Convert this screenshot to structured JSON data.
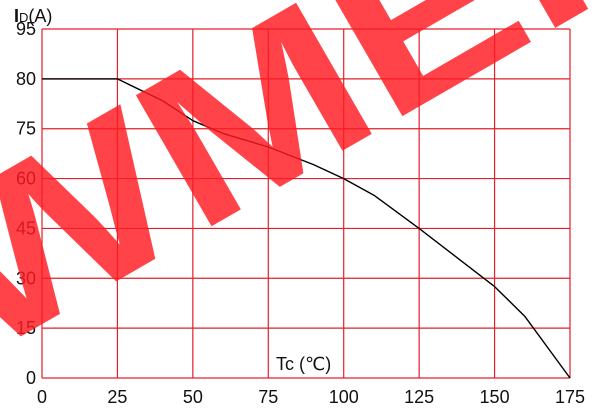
{
  "chart_data": {
    "type": "line",
    "title": "",
    "ylabel_main": "I",
    "ylabel_sub": "D",
    "ylabel_unit": "(A)",
    "xlabel": "Tc (℃)",
    "x_ticks": [
      "0",
      "25",
      "50",
      "75",
      "100",
      "125",
      "150",
      "175"
    ],
    "y_ticks": [
      "0",
      "15",
      "30",
      "45",
      "60",
      "75",
      "80",
      "95"
    ],
    "xlim": [
      0,
      175
    ],
    "grid": true,
    "grid_color": "#e0202a",
    "line_color": "#000000",
    "series": [
      {
        "x": [
          0,
          10,
          25,
          40,
          50,
          60,
          75,
          90,
          100,
          110,
          125,
          140,
          150,
          160,
          175
        ],
        "y": [
          80,
          80,
          80,
          77.8,
          75.8,
          73.6,
          69.5,
          64.2,
          60.0,
          55.0,
          45.0,
          34.5,
          27.5,
          18.6,
          0
        ]
      }
    ]
  },
  "watermark": {
    "text": "WMEI",
    "color": "#ff1a22"
  }
}
